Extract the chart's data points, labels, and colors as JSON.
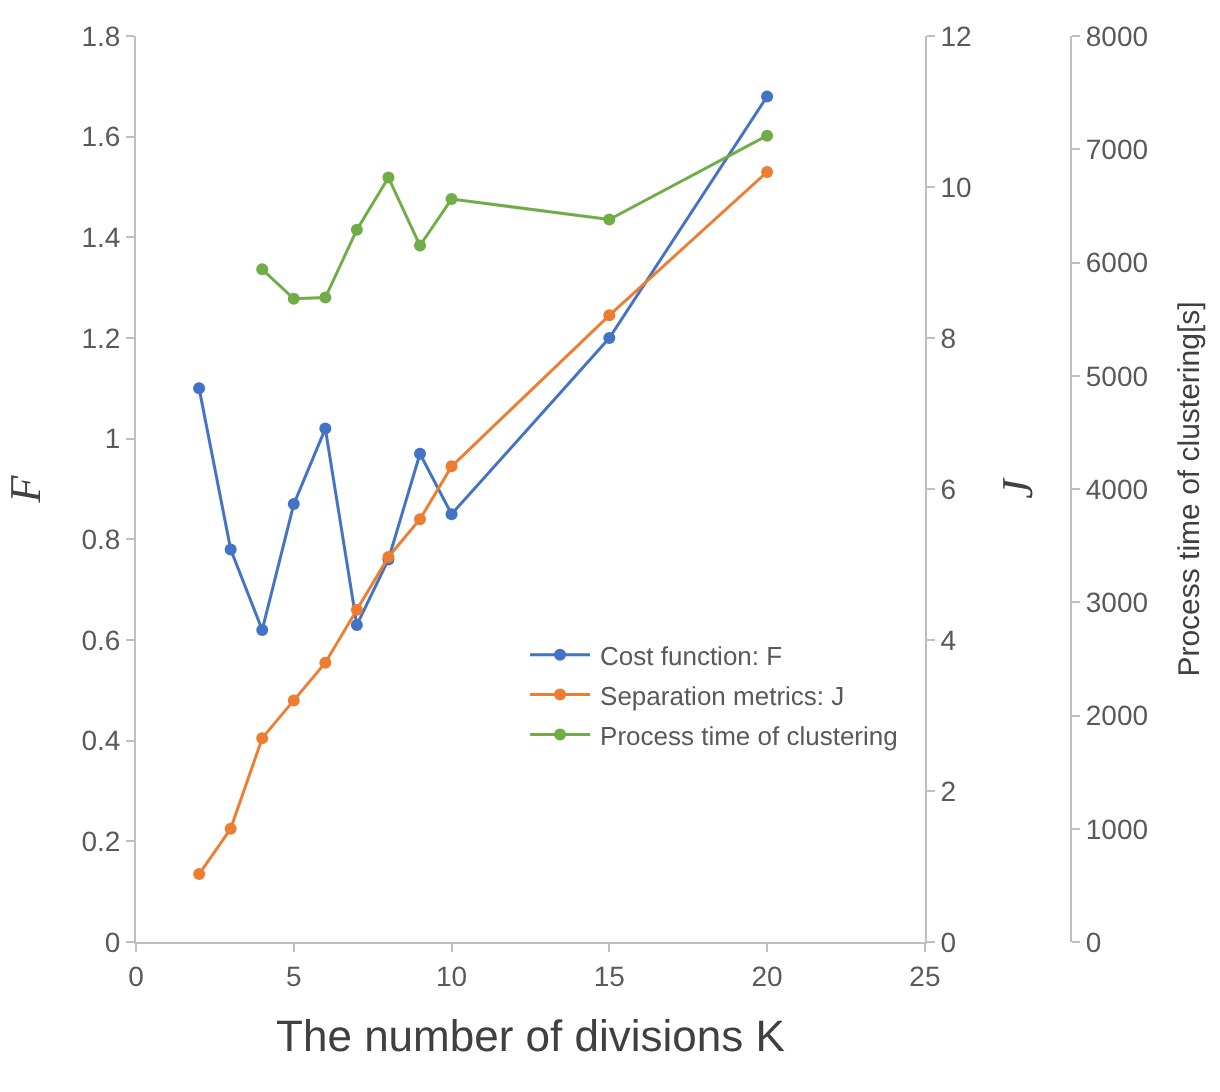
{
  "chart_data": {
    "type": "line",
    "xlabel": "The number of divisions K",
    "ylabel": "F",
    "y2label": "J",
    "y3label": "Process time of clustering[s]",
    "x": [
      2,
      3,
      4,
      5,
      6,
      7,
      8,
      9,
      10,
      15,
      20
    ],
    "series": [
      {
        "name": "Cost function: F",
        "color": "#4472c4",
        "values": [
          1.1,
          0.78,
          0.62,
          0.87,
          1.02,
          0.63,
          0.76,
          0.97,
          0.85,
          1.2,
          1.68
        ]
      },
      {
        "name": "Separation metrics: J",
        "color": "#ed7d31",
        "axis": "y2",
        "values": [
          0.9,
          1.5,
          2.7,
          3.2,
          3.7,
          4.4,
          5.1,
          5.6,
          6.3,
          8.3,
          10.2
        ]
      },
      {
        "name": "Process time of clustering",
        "color": "#70ad47",
        "axis": "y3",
        "x": [
          4,
          5,
          6,
          7,
          8,
          9,
          10,
          15,
          20
        ],
        "values": [
          5940,
          5680,
          5690,
          6290,
          6750,
          6150,
          6560,
          6380,
          7120
        ]
      }
    ],
    "xlim": [
      0,
      25
    ],
    "xticks": [
      0,
      5,
      10,
      15,
      20,
      25
    ],
    "ylim": [
      0,
      1.8
    ],
    "yticks": [
      0,
      0.2,
      0.4,
      0.6,
      0.8,
      1,
      1.2,
      1.4,
      1.6,
      1.8
    ],
    "y2lim": [
      0,
      12
    ],
    "y2ticks": [
      0,
      2,
      4,
      6,
      8,
      10,
      12
    ],
    "y3lim": [
      0,
      8000
    ],
    "y3ticks": [
      0,
      1000,
      2000,
      3000,
      4000,
      5000,
      6000,
      7000,
      8000
    ],
    "legend": "bottom right",
    "marker": "circle",
    "line_style": "solid"
  }
}
